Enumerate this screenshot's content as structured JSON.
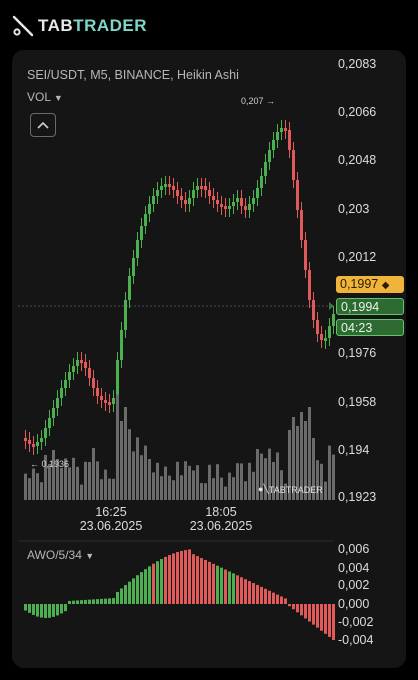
{
  "brand": {
    "tab": "TAB",
    "trader": "TRADER"
  },
  "chart": {
    "symbol": "SEI/USDT, M5, BINANCE, Heikin Ashi",
    "volume_label": "VOL",
    "oscillator_label": "AWO/5/34",
    "watermark": "TABTRADER",
    "price_axis": [
      "0,2083",
      "0,2066",
      "0,2048",
      "0,203",
      "0,2012",
      "0,1976",
      "0,1958",
      "0,194",
      "0,1923"
    ],
    "oscillator_axis": [
      "0,006",
      "0,004",
      "0,002",
      "0,000",
      "-0,002",
      "-0,004"
    ],
    "time_axis": [
      {
        "time": "16:25",
        "date": "23.06.2025"
      },
      {
        "time": "18:05",
        "date": "23.06.2025"
      }
    ],
    "high_marker": "0,207",
    "low_marker": "0,1936",
    "last_price_tag": "0,1997",
    "current_price": "0,1994",
    "countdown": "04:23",
    "colors": {
      "up": "#4caf50",
      "down": "#e05a5a",
      "volume": "#6b6b6b",
      "tag": "#f0b43a"
    }
  }
}
